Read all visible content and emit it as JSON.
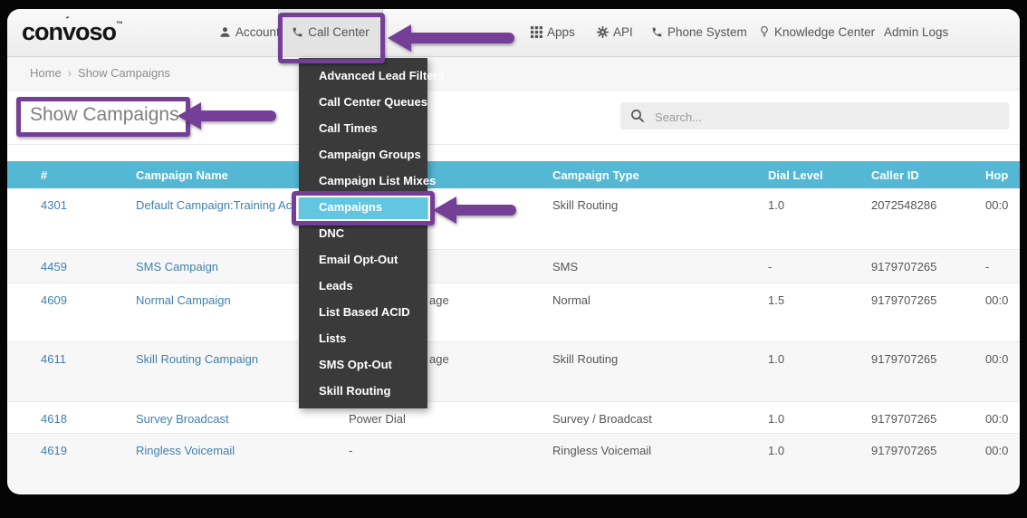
{
  "colors": {
    "annotation_purple": "#753e97",
    "header_blue": "#54b7d3",
    "selected_blue": "#63c6e0",
    "link_blue": "#4080ad",
    "dropdown_bg": "#3a3a3a"
  },
  "navbar": {
    "logo": "convoso",
    "logo_tm": "™",
    "items": [
      {
        "label": "Account",
        "icon": "user-icon",
        "active": false
      },
      {
        "label": "Call Center",
        "icon": "phone-icon",
        "active": true
      },
      {
        "label": "Apps",
        "icon": "grid-icon",
        "active": false
      },
      {
        "label": "API",
        "icon": "gear-icon",
        "active": false
      },
      {
        "label": "Phone System",
        "icon": "phone-icon",
        "active": false
      },
      {
        "label": "Knowledge Center",
        "icon": "bulb-icon",
        "active": false
      },
      {
        "label": "Admin Logs",
        "icon": null,
        "active": false
      }
    ]
  },
  "breadcrumb": {
    "items": [
      "Home",
      "Show Campaigns"
    ],
    "separator": "›"
  },
  "page": {
    "title": "Show Campaigns"
  },
  "search": {
    "placeholder": "Search...",
    "value": ""
  },
  "dropdown": {
    "items": [
      "Advanced Lead Filters",
      "Call Center Queues",
      "Call Times",
      "Campaign Groups",
      "Campaign List Mixes",
      "Campaigns",
      "DNC",
      "Email Opt-Out",
      "Leads",
      "List Based ACID",
      "Lists",
      "SMS Opt-Out",
      "Skill Routing"
    ],
    "selected": "Campaigns"
  },
  "table": {
    "columns": [
      "#",
      "Campaign Name",
      "",
      "Campaign Type",
      "Dial Level",
      "Caller ID",
      "Hop"
    ],
    "rows": [
      {
        "id": "4301",
        "name": "Default Campaign:Training Ac",
        "dial_mode": "",
        "dial_mode_partial": false,
        "type": "Skill Routing",
        "dial_level": "1.0",
        "caller_id": "2072548286",
        "hop": "00:0"
      },
      {
        "id": "4459",
        "name": "SMS Campaign",
        "dial_mode": "",
        "dial_mode_partial": false,
        "type": "SMS",
        "dial_level": "-",
        "caller_id": "9179707265",
        "hop": "-"
      },
      {
        "id": "4609",
        "name": "Normal Campaign",
        "dial_mode": "age",
        "dial_mode_partial": true,
        "type": "Normal",
        "dial_level": "1.5",
        "caller_id": "9179707265",
        "hop": "00:0"
      },
      {
        "id": "4611",
        "name": "Skill Routing Campaign",
        "dial_mode": "age",
        "dial_mode_partial": true,
        "type": "Skill Routing",
        "dial_level": "1.0",
        "caller_id": "9179707265",
        "hop": "00:0"
      },
      {
        "id": "4618",
        "name": "Survey Broadcast",
        "dial_mode": "Power Dial",
        "dial_mode_partial": false,
        "type": "Survey / Broadcast",
        "dial_level": "1.0",
        "caller_id": "9179707265",
        "hop": "00:0"
      },
      {
        "id": "4619",
        "name": "Ringless Voicemail",
        "dial_mode": "-",
        "dial_mode_partial": false,
        "type": "Ringless Voicemail",
        "dial_level": "1.0",
        "caller_id": "9179707265",
        "hop": "00:0"
      }
    ]
  }
}
